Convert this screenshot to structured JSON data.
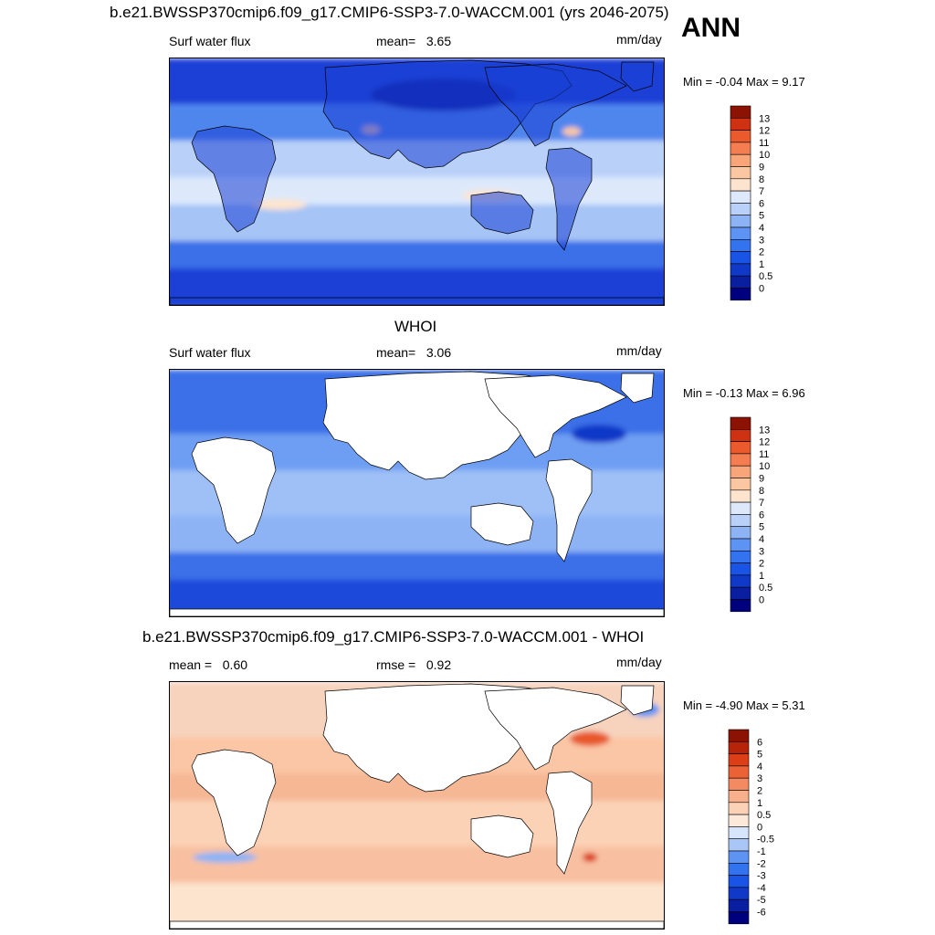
{
  "header": {
    "title": "b.e21.BWSSP370cmip6.f09_g17.CMIP6-SSP3-7.0-WACCM.001 (yrs 2046-2075)",
    "season": "ANN"
  },
  "panels": [
    {
      "subtitle": "",
      "var_label": "Surf water flux",
      "stat_label": "mean=",
      "stat_value": "3.65",
      "units": "mm/day",
      "minmax": "Min =  -0.04 Max =    9.17",
      "palette": "model"
    },
    {
      "subtitle": "WHOI",
      "var_label": "Surf water flux",
      "stat_label": "mean=",
      "stat_value": "3.06",
      "units": "mm/day",
      "minmax": "Min =  -0.13 Max =    6.96",
      "palette": "obs"
    },
    {
      "subtitle": "b.e21.BWSSP370cmip6.f09_g17.CMIP6-SSP3-7.0-WACCM.001 - WHOI",
      "var_label": "mean =",
      "var_value": "0.60",
      "stat_label": "rmse =",
      "stat_value": "0.92",
      "units": "mm/day",
      "minmax": "Min =  -4.90 Max =    5.31",
      "palette": "diff"
    }
  ],
  "chart_data": [
    {
      "type": "heatmap",
      "title": "b.e21.BWSSP370cmip6.f09_g17.CMIP6-SSP3-7.0-WACCM.001 (yrs 2046-2075)",
      "variable": "Surf water flux",
      "units": "mm/day",
      "mean": 3.65,
      "min": -0.04,
      "max": 9.17,
      "colorbar_levels": [
        "0",
        "0.5",
        "1",
        "2",
        "3",
        "4",
        "5",
        "6",
        "7",
        "8",
        "9",
        "10",
        "11",
        "12",
        "13"
      ],
      "colorbar_colors": [
        "#00007f",
        "#0a1fa0",
        "#1039c8",
        "#1a54e6",
        "#3373f0",
        "#5d93f2",
        "#8db3f5",
        "#b9d1f8",
        "#dde9fb",
        "#fde4cf",
        "#fbc7a2",
        "#f9a57a",
        "#f47e52",
        "#ea5a2d",
        "#cf3212",
        "#8c1204"
      ]
    },
    {
      "type": "heatmap",
      "title": "WHOI",
      "variable": "Surf water flux",
      "units": "mm/day",
      "mean": 3.06,
      "min": -0.13,
      "max": 6.96,
      "colorbar_levels": [
        "0",
        "0.5",
        "1",
        "2",
        "3",
        "4",
        "5",
        "6",
        "7",
        "8",
        "9",
        "10",
        "11",
        "12",
        "13"
      ],
      "colorbar_colors": [
        "#00007f",
        "#0a1fa0",
        "#1039c8",
        "#1a54e6",
        "#3373f0",
        "#5d93f2",
        "#8db3f5",
        "#b9d1f8",
        "#dde9fb",
        "#fde4cf",
        "#fbc7a2",
        "#f9a57a",
        "#f47e52",
        "#ea5a2d",
        "#cf3212",
        "#8c1204"
      ]
    },
    {
      "type": "heatmap",
      "title": "b.e21.BWSSP370cmip6.f09_g17.CMIP6-SSP3-7.0-WACCM.001 - WHOI",
      "units": "mm/day",
      "mean": 0.6,
      "rmse": 0.92,
      "min": -4.9,
      "max": 5.31,
      "colorbar_levels": [
        "-6",
        "-5",
        "-4",
        "-3",
        "-2",
        "-1",
        "-0.5",
        "0",
        "0.5",
        "1",
        "2",
        "3",
        "4",
        "5",
        "6"
      ],
      "colorbar_colors": [
        "#00007f",
        "#0a1fa0",
        "#1039c8",
        "#1a54e6",
        "#3373f0",
        "#5d93f2",
        "#a9c6f6",
        "#d6e5fa",
        "#fde9da",
        "#fbd2b6",
        "#f8b08c",
        "#f48a62",
        "#ec6237",
        "#dc3e18",
        "#b8240a",
        "#8c1204"
      ]
    }
  ]
}
